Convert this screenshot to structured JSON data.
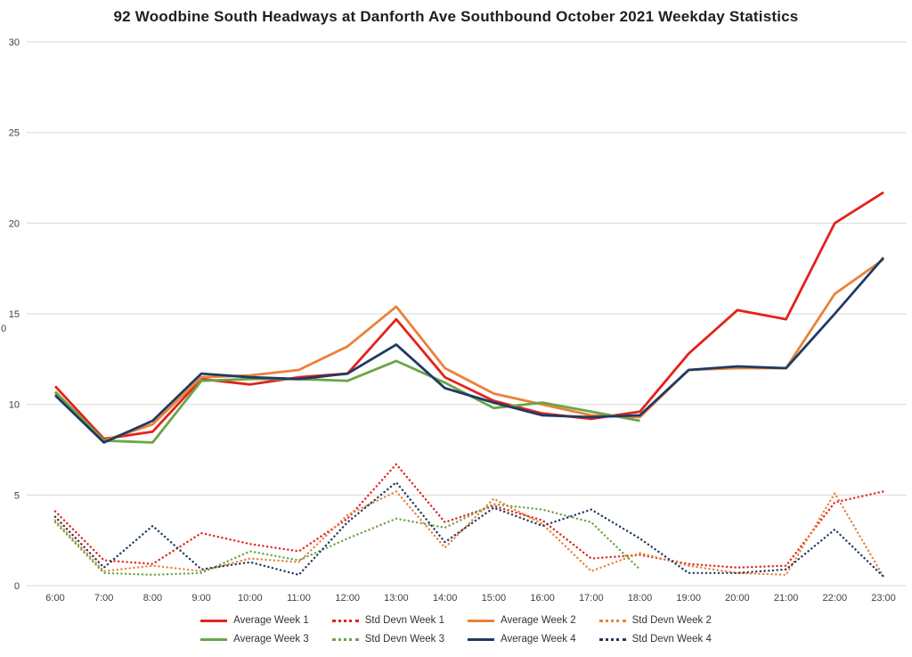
{
  "chart_data": {
    "type": "line",
    "title": "92 Woodbine South Headways at Danforth Ave Southbound October 2021 Weekday Statistics",
    "x_categories": [
      "6:00",
      "7:00",
      "8:00",
      "9:00",
      "10:00",
      "11:00",
      "12:00",
      "13:00",
      "14:00",
      "15:00",
      "16:00",
      "17:00",
      "18:00",
      "19:00",
      "20:00",
      "21:00",
      "22:00",
      "23:00"
    ],
    "xlabel": "",
    "ylabel": "",
    "y_axis_title_fragment": "0",
    "ylim": [
      0,
      30
    ],
    "y_ticks": [
      0,
      5,
      10,
      15,
      20,
      25,
      30
    ],
    "grid": "horizontal",
    "grid_color": "#d9d9d9",
    "axis_color": "#404040",
    "legend_position": "bottom",
    "series": [
      {
        "name": "Average Week 1",
        "style": "solid",
        "color": "#e2231a",
        "values": [
          11.0,
          8.1,
          8.5,
          11.4,
          11.1,
          11.5,
          11.7,
          14.7,
          11.5,
          10.2,
          9.5,
          9.2,
          9.6,
          12.8,
          15.2,
          14.7,
          20.0,
          21.7
        ]
      },
      {
        "name": "Std Devn Week 1",
        "style": "dotted",
        "color": "#e2231a",
        "values": [
          4.1,
          1.4,
          1.2,
          2.9,
          2.3,
          1.9,
          3.7,
          6.7,
          3.5,
          4.4,
          3.6,
          1.5,
          1.7,
          1.2,
          1.0,
          1.1,
          4.6,
          5.2
        ]
      },
      {
        "name": "Average Week 2",
        "style": "solid",
        "color": "#e8823a",
        "values": [
          10.6,
          8.0,
          8.9,
          11.5,
          11.6,
          11.9,
          13.2,
          15.4,
          12.0,
          10.6,
          10.0,
          9.4,
          9.3,
          11.9,
          12.0,
          12.0,
          16.1,
          18.0
        ]
      },
      {
        "name": "Std Devn Week 2",
        "style": "dotted",
        "color": "#e8823a",
        "values": [
          3.6,
          0.8,
          1.1,
          0.8,
          1.5,
          1.3,
          3.9,
          5.2,
          2.1,
          4.8,
          3.4,
          0.8,
          1.8,
          1.1,
          0.7,
          0.6,
          5.1,
          0.5
        ]
      },
      {
        "name": "Average Week 3",
        "style": "solid",
        "color": "#6ba547",
        "values": [
          10.7,
          8.0,
          7.9,
          11.3,
          11.4,
          11.4,
          11.3,
          12.4,
          11.2,
          9.8,
          10.1,
          9.6,
          9.1,
          null,
          null,
          null,
          null,
          null
        ]
      },
      {
        "name": "Std Devn Week 3",
        "style": "dotted",
        "color": "#6ba547",
        "values": [
          3.5,
          0.7,
          0.6,
          0.7,
          1.9,
          1.4,
          2.6,
          3.7,
          3.2,
          4.5,
          4.2,
          3.5,
          0.9,
          null,
          null,
          null,
          null,
          null
        ]
      },
      {
        "name": "Average Week 4",
        "style": "solid",
        "color": "#1f3a63",
        "values": [
          10.5,
          7.9,
          9.1,
          11.7,
          11.5,
          11.4,
          11.7,
          13.3,
          10.9,
          10.1,
          9.4,
          9.3,
          9.4,
          11.9,
          12.1,
          12.0,
          15.0,
          18.1
        ]
      },
      {
        "name": "Std Devn Week 4",
        "style": "dotted",
        "color": "#1f3a63",
        "values": [
          3.8,
          1.0,
          3.3,
          0.9,
          1.3,
          0.6,
          3.5,
          5.7,
          2.4,
          4.3,
          3.3,
          4.2,
          2.6,
          0.7,
          0.7,
          0.9,
          3.1,
          0.5
        ]
      }
    ],
    "legend_rows": [
      [
        0,
        1,
        2,
        3
      ],
      [
        4,
        5,
        6,
        7
      ]
    ]
  }
}
